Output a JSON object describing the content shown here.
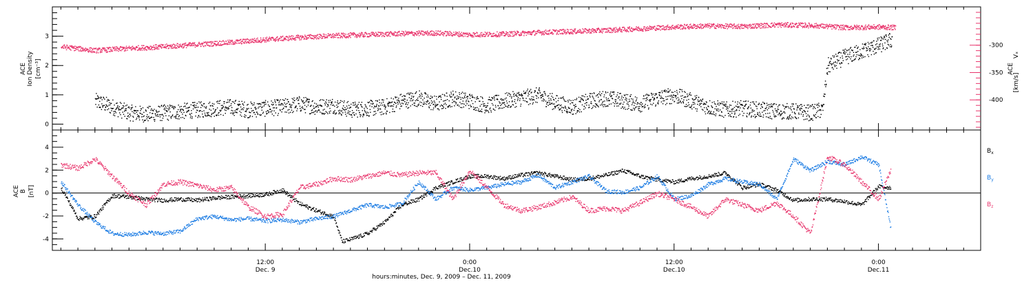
{
  "chart_data": [
    {
      "type": "scatter",
      "panel": "plasma",
      "left_axis": {
        "label_lines": [
          "ACE",
          "Ion Density"
        ],
        "units": "[cm⁻³]",
        "ylim": [
          -0.2,
          4.0
        ],
        "ticks": [
          0,
          1,
          2,
          3
        ],
        "tick_labels": [
          "0",
          "1",
          "2",
          "3"
        ]
      },
      "right_axis": {
        "label_lines": [
          "ACE",
          "Vₓ"
        ],
        "units": "[km/s]",
        "ylim": [
          -455,
          -230
        ],
        "ticks": [
          -300,
          -350,
          -400
        ],
        "tick_labels": [
          "-300",
          "-350",
          "-400"
        ],
        "color": "#e8336b"
      },
      "x_hours_since": "Dec. 9 2009 00:00",
      "series": [
        {
          "key": "density",
          "axis": "left",
          "color": "#000000",
          "x": [
            2,
            3,
            4,
            5,
            6,
            7,
            8,
            9,
            10,
            11,
            12,
            13,
            14,
            15,
            16,
            17,
            18,
            19,
            20,
            21,
            22,
            23,
            24,
            25,
            26,
            27,
            28,
            29,
            30,
            31,
            32,
            33,
            34,
            35,
            36,
            37,
            38,
            39,
            40,
            41,
            42,
            43,
            44,
            44.7,
            45,
            46,
            47,
            48,
            48.8
          ],
          "y": [
            0.8,
            0.6,
            0.4,
            0.35,
            0.4,
            0.45,
            0.5,
            0.55,
            0.6,
            0.5,
            0.55,
            0.6,
            0.7,
            0.6,
            0.65,
            0.5,
            0.55,
            0.6,
            0.8,
            0.9,
            0.7,
            0.9,
            0.8,
            0.65,
            0.8,
            0.9,
            1.0,
            0.75,
            0.6,
            0.8,
            0.9,
            0.8,
            0.7,
            0.9,
            1.0,
            0.8,
            0.6,
            0.5,
            0.55,
            0.5,
            0.45,
            0.45,
            0.4,
            0.5,
            2.0,
            2.3,
            2.5,
            2.7,
            2.9
          ]
        },
        {
          "key": "velocity",
          "axis": "right",
          "color": "#e8336b",
          "x": [
            0,
            2,
            4,
            6,
            8,
            10,
            12,
            14,
            16,
            18,
            20,
            22,
            24,
            26,
            28,
            30,
            32,
            34,
            36,
            38,
            40,
            42,
            44,
            46,
            48,
            49
          ],
          "y": [
            -302,
            -309,
            -305,
            -302,
            -298,
            -294,
            -289,
            -285,
            -282,
            -280,
            -278,
            -277,
            -280,
            -279,
            -276,
            -274,
            -272,
            -269,
            -266,
            -264,
            -265,
            -262,
            -263,
            -267,
            -266,
            -267
          ]
        }
      ]
    },
    {
      "type": "scatter",
      "panel": "magnetic-field",
      "left_axis": {
        "label_lines": [
          "ACE",
          "B"
        ],
        "units": "[nT]",
        "ylim": [
          -5.0,
          5.5
        ],
        "ticks": [
          -4,
          -2,
          0,
          2,
          4
        ],
        "tick_labels": [
          "-4",
          "-2",
          "0",
          "2",
          "4"
        ]
      },
      "x_hours_since": "Dec. 9 2009 00:00",
      "series": [
        {
          "name": "Bx",
          "color": "#000000",
          "x": [
            0,
            1,
            2,
            3,
            4,
            5,
            6,
            7,
            8,
            9,
            10,
            11,
            12,
            13,
            14,
            15,
            16,
            16.5,
            17,
            18,
            19,
            20,
            21,
            22,
            23,
            24,
            25,
            26,
            27,
            28,
            29,
            30,
            31,
            32,
            33,
            34,
            35,
            36,
            37,
            38,
            39,
            40,
            41,
            42,
            43,
            44,
            45,
            46,
            47,
            48,
            48.7
          ],
          "y": [
            0.5,
            -2.2,
            -2.0,
            -0.2,
            -0.3,
            -0.5,
            -0.6,
            -0.5,
            -0.6,
            -0.4,
            -0.3,
            -0.2,
            -0.1,
            0.3,
            -0.9,
            -1.5,
            -2.0,
            -4.2,
            -4.0,
            -3.5,
            -2.5,
            -1.0,
            -0.5,
            0.5,
            1.0,
            1.5,
            1.5,
            1.3,
            1.6,
            1.8,
            1.5,
            1.2,
            1.3,
            1.6,
            2.0,
            1.5,
            1.2,
            1.0,
            1.3,
            1.5,
            1.8,
            0.5,
            0.8,
            0.3,
            -0.6,
            -0.5,
            -0.5,
            -0.7,
            -1.0,
            0.6,
            0.5
          ]
        },
        {
          "name": "By",
          "color": "#1a7be3",
          "x": [
            0,
            1,
            2,
            3,
            4,
            5,
            6,
            7,
            8,
            9,
            10,
            11,
            12,
            13,
            14,
            15,
            16,
            17,
            18,
            19,
            20,
            21,
            22,
            23,
            24,
            25,
            26,
            27,
            28,
            29,
            30,
            31,
            32,
            33,
            34,
            35,
            36,
            37,
            38,
            39,
            40,
            41,
            42,
            43,
            44,
            45,
            46,
            47,
            48,
            48.7
          ],
          "y": [
            1.0,
            -1.0,
            -2.5,
            -3.5,
            -3.6,
            -3.4,
            -3.5,
            -3.3,
            -2.2,
            -2.0,
            -2.3,
            -2.2,
            -2.4,
            -2.3,
            -2.5,
            -2.2,
            -2.0,
            -1.5,
            -1.0,
            -1.2,
            -0.9,
            1.0,
            -0.5,
            0.5,
            0.3,
            0.5,
            0.8,
            1.0,
            1.6,
            0.5,
            1.0,
            1.5,
            0.2,
            0.1,
            0.5,
            1.5,
            -0.5,
            -0.2,
            0.8,
            1.3,
            1.0,
            0.8,
            -0.5,
            3.0,
            2.0,
            2.8,
            2.5,
            3.2,
            2.5,
            -3.0
          ]
        },
        {
          "name": "Bz",
          "color": "#e8336b",
          "x": [
            0,
            1,
            2,
            3,
            4,
            5,
            6,
            7,
            8,
            9,
            10,
            11,
            12,
            13,
            14,
            15,
            16,
            17,
            18,
            19,
            20,
            21,
            22,
            23,
            24,
            25,
            26,
            27,
            28,
            29,
            30,
            31,
            32,
            33,
            34,
            35,
            36,
            37,
            38,
            39,
            40,
            41,
            42,
            43,
            44,
            45,
            46,
            47,
            48,
            48.7
          ],
          "y": [
            2.5,
            2.2,
            3.0,
            1.5,
            0.0,
            -1.0,
            0.8,
            1.0,
            0.7,
            0.3,
            0.5,
            -1.2,
            -2.0,
            -1.8,
            0.5,
            0.8,
            1.3,
            1.2,
            1.5,
            1.8,
            1.6,
            1.8,
            1.8,
            -0.5,
            2.0,
            0.5,
            -1.0,
            -1.5,
            -1.2,
            -0.8,
            -0.3,
            -1.5,
            -1.3,
            -1.5,
            -0.8,
            0.0,
            -0.5,
            -1.2,
            -2.0,
            -0.5,
            -1.0,
            -1.5,
            -0.8,
            -2.0,
            -3.5,
            3.2,
            2.5,
            1.0,
            -0.5,
            2.0
          ]
        }
      ],
      "legend": [
        "B",
        "B",
        "B"
      ],
      "legend_subscripts": [
        "x",
        "y",
        "z"
      ],
      "legend_colors": [
        "#000000",
        "#1a7be3",
        "#e8336b"
      ],
      "legend_position": "right"
    }
  ],
  "x_axis": {
    "xlim": [
      -0.5,
      54
    ],
    "major_ticks": [
      12,
      24,
      36,
      48
    ],
    "minor_every": 1,
    "tick_labels": [
      {
        "x": 12,
        "line1": "12:00",
        "line2": "Dec. 9"
      },
      {
        "x": 24,
        "line1": "0:00",
        "line2": "Dec.10"
      },
      {
        "x": 36,
        "line1": "12:00",
        "line2": "Dec.10"
      },
      {
        "x": 48,
        "line1": "0:00",
        "line2": "Dec.11"
      }
    ],
    "label": "hours:minutes, Dec.  9, 2009 – Dec. 11, 2009"
  }
}
